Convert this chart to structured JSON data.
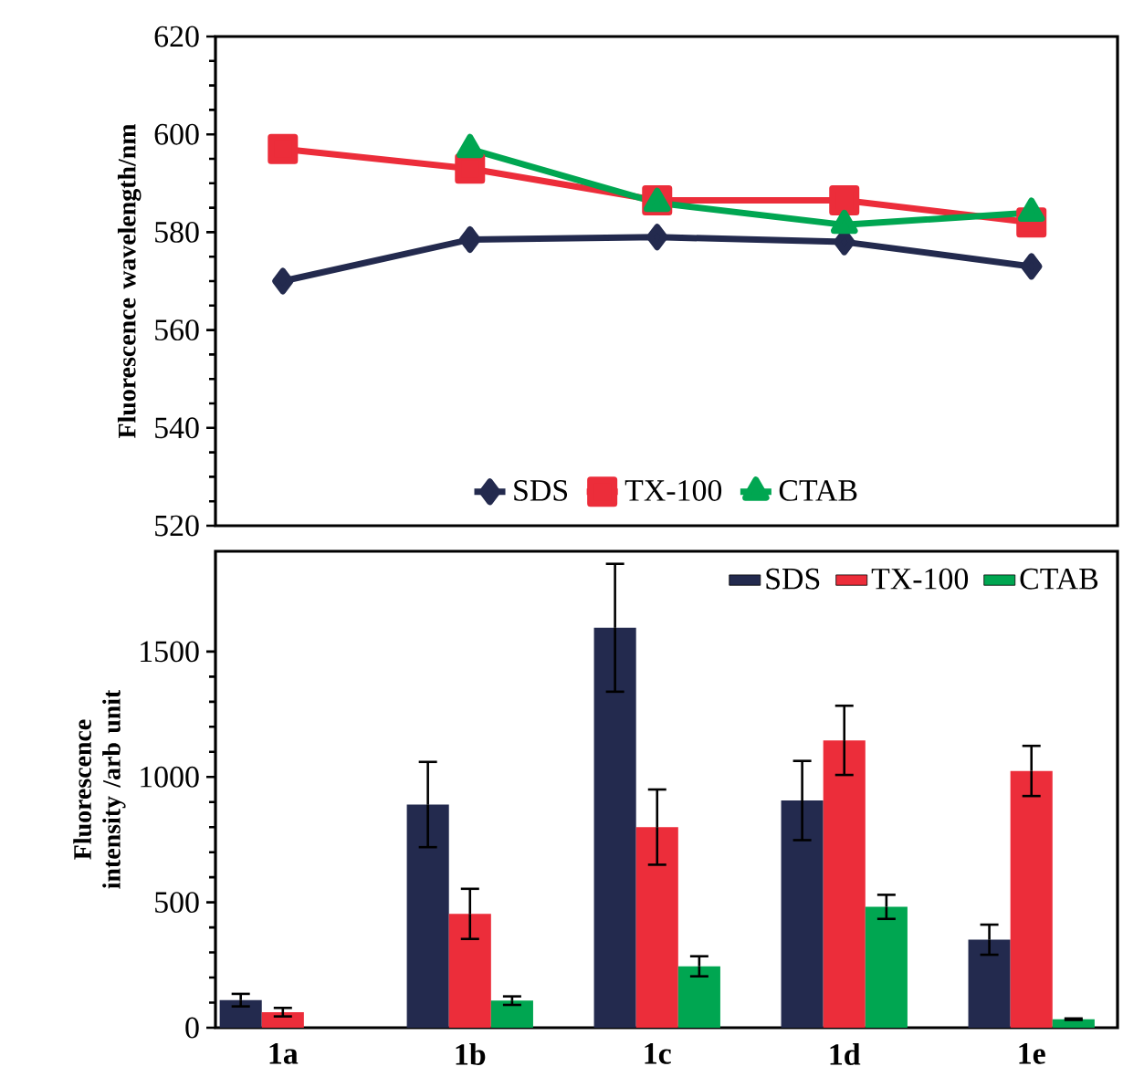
{
  "chart_data": [
    {
      "type": "line",
      "ylabel": "Fluorescence wavelength/nm",
      "categories": [
        null,
        null,
        null,
        null,
        null
      ],
      "tick_labels": "y",
      "ylim": [
        520,
        620
      ],
      "yticks": [
        520,
        540,
        560,
        580,
        600,
        620
      ],
      "legend": "bottom",
      "series": [
        {
          "name": "SDS",
          "color": "#232a4e",
          "marker": "diamond",
          "values": [
            570,
            578.5,
            579,
            578,
            573
          ]
        },
        {
          "name": "TX-100",
          "color": "#ec2d3a",
          "marker": "square",
          "values": [
            597,
            593,
            586.5,
            586.5,
            582
          ]
        },
        {
          "name": "CTAB",
          "color": "#00a651",
          "marker": "triangle",
          "values": [
            null,
            597,
            586,
            581.5,
            584
          ]
        }
      ]
    },
    {
      "type": "bar",
      "ylabel": "Fluorescence intensity /arb unit",
      "categories": [
        "1a",
        "1b",
        "1c",
        "1d",
        "1e"
      ],
      "ylim": [
        0,
        1900
      ],
      "yticks": [
        0,
        500,
        1000,
        1500
      ],
      "legend": "top right",
      "series": [
        {
          "name": "SDS",
          "color": "#232a4e",
          "values": [
            110,
            890,
            1595,
            906,
            351
          ],
          "errors": [
            25,
            170,
            255,
            158,
            60
          ]
        },
        {
          "name": "TX-100",
          "color": "#ec2d3a",
          "values": [
            62,
            454,
            800,
            1146,
            1024
          ],
          "errors": [
            17,
            100,
            150,
            138,
            100
          ]
        },
        {
          "name": "CTAB",
          "color": "#00a651",
          "values": [
            null,
            108,
            245,
            482,
            34
          ],
          "errors": [
            null,
            17,
            40,
            48,
            3
          ]
        }
      ]
    }
  ]
}
